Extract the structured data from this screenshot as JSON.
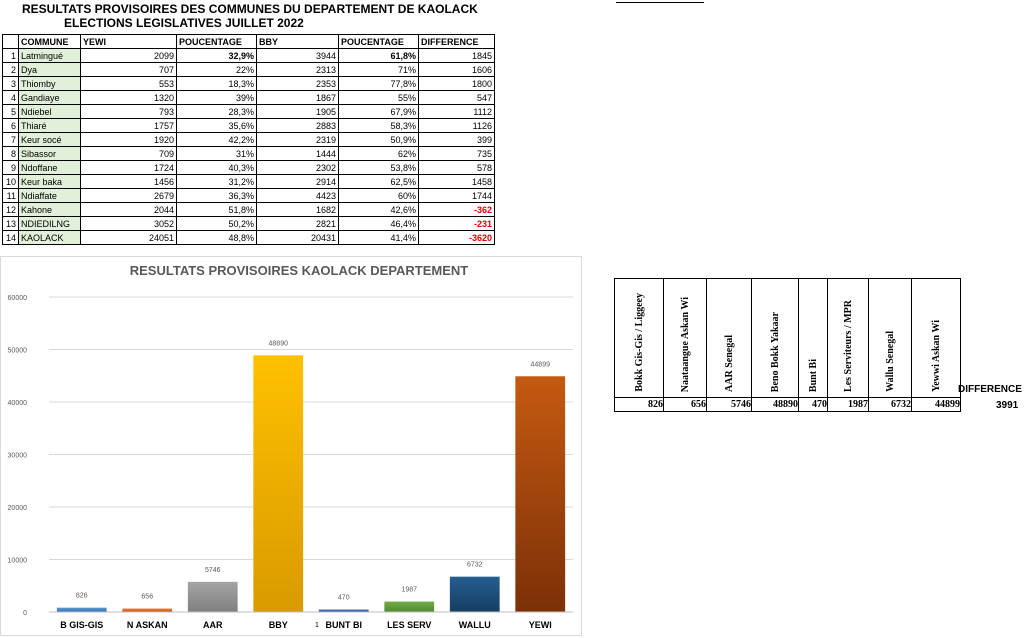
{
  "header": {
    "title_line1": "RESULTATS  PROVISOIRES DES COMMUNES DU DEPARTEMENT DE KAOLACK",
    "title_line2": "ELECTIONS LEGISLATIVES JUILLET 2022"
  },
  "results_table": {
    "columns": [
      "COMMUNE",
      "YEWI",
      "POUCENTAGE",
      "BBY",
      "POUCENTAGE",
      "DIFFERENCE"
    ],
    "rows": [
      {
        "n": "1",
        "commune": "Latmingué",
        "yewi": "2099",
        "pct1": "32,9%",
        "bby": "3944",
        "pct2": "61,8%",
        "diff": "1845",
        "bold": true,
        "neg": false
      },
      {
        "n": "2",
        "commune": "Dya",
        "yewi": "707",
        "pct1": "22%",
        "bby": "2313",
        "pct2": "71%",
        "diff": "1606",
        "bold": false,
        "neg": false
      },
      {
        "n": "3",
        "commune": "Thiomby",
        "yewi": "553",
        "pct1": "18,3%",
        "bby": "2353",
        "pct2": "77,8%",
        "diff": "1800",
        "bold": false,
        "neg": false
      },
      {
        "n": "4",
        "commune": "Gandiaye",
        "yewi": "1320",
        "pct1": "39%",
        "bby": "1867",
        "pct2": "55%",
        "diff": "547",
        "bold": false,
        "neg": false
      },
      {
        "n": "5",
        "commune": "Ndiebel",
        "yewi": "793",
        "pct1": "28,3%",
        "bby": "1905",
        "pct2": "67,9%",
        "diff": "1112",
        "bold": false,
        "neg": false
      },
      {
        "n": "6",
        "commune": "Thiaré",
        "yewi": "1757",
        "pct1": "35,6%",
        "bby": "2883",
        "pct2": "58,3%",
        "diff": "1126",
        "bold": false,
        "neg": false
      },
      {
        "n": "7",
        "commune": "Keur socé",
        "yewi": "1920",
        "pct1": "42,2%",
        "bby": "2319",
        "pct2": "50,9%",
        "diff": "399",
        "bold": false,
        "neg": false
      },
      {
        "n": "8",
        "commune": "Sibassor",
        "yewi": "709",
        "pct1": "31%",
        "bby": "1444",
        "pct2": "62%",
        "diff": "735",
        "bold": false,
        "neg": false
      },
      {
        "n": "9",
        "commune": "Ndoffane",
        "yewi": "1724",
        "pct1": "40,3%",
        "bby": "2302",
        "pct2": "53,8%",
        "diff": "578",
        "bold": false,
        "neg": false
      },
      {
        "n": "10",
        "commune": "Keur baka",
        "yewi": "1456",
        "pct1": "31,2%",
        "bby": "2914",
        "pct2": "62,5%",
        "diff": "1458",
        "bold": false,
        "neg": false
      },
      {
        "n": "11",
        "commune": "Ndiaffate",
        "yewi": "2679",
        "pct1": "36,3%",
        "bby": "4423",
        "pct2": "60%",
        "diff": "1744",
        "bold": false,
        "neg": false
      },
      {
        "n": "12",
        "commune": "Kahone",
        "yewi": "2044",
        "pct1": "51,8%",
        "bby": "1682",
        "pct2": "42,6%",
        "diff": "-362",
        "bold": false,
        "neg": true
      },
      {
        "n": "13",
        "commune": "NDIEDILNG",
        "yewi": "3052",
        "pct1": "50,2%",
        "bby": "2821",
        "pct2": "46,4%",
        "diff": "-231",
        "bold": false,
        "neg": true
      },
      {
        "n": "14",
        "commune": "KAOLACK",
        "yewi": "24051",
        "pct1": "48,8%",
        "bby": "20431",
        "pct2": "41,4%",
        "diff": "-3620",
        "bold": false,
        "neg": true
      }
    ]
  },
  "chart_data": {
    "type": "bar",
    "title": "RESULTATS PROVISOIRES KAOLACK DEPARTEMENT",
    "categories": [
      "B GIS-GIS",
      "N ASKAN",
      "AAR",
      "BBY",
      "BUNT BI",
      "LES SERV",
      "WALLU",
      "YEWI"
    ],
    "values": [
      826,
      656,
      5746,
      48890,
      470,
      1987,
      6732,
      44899
    ],
    "data_labels": [
      "826",
      "656",
      "5746",
      "48890",
      "470",
      "1987",
      "6732",
      "44899"
    ],
    "colors": [
      "#5b9bd5",
      "#ed7d31",
      "#a5a5a5",
      "#ffc000",
      "#4472c4",
      "#70ad47",
      "#255e91",
      "#c55a11"
    ],
    "colors_dark": [
      "#2e6fb5",
      "#c0561a",
      "#7f7f7f",
      "#d99a00",
      "#2a4f93",
      "#4f8a2d",
      "#163d63",
      "#7b3008"
    ],
    "ylim": [
      0,
      60000
    ],
    "yticks": [
      "0",
      "10000",
      "20000",
      "30000",
      "40000",
      "50000",
      "60000"
    ],
    "extra_tick_label": "1",
    "grid": true,
    "legend": "none"
  },
  "votes_table": {
    "headers": [
      "Bokk Gis-Gis / Liggeey",
      "Naataangue Askan Wi",
      "AAR Senegal",
      "Beno Bokk Yakaar",
      "Bunt Bi",
      "Les Serviteurs / MPR",
      "Wallu Senegal",
      "Yewwi Askan Wi"
    ],
    "values": [
      "826",
      "656",
      "5746",
      "48890",
      "470",
      "1987",
      "6732",
      "44899"
    ],
    "difference_label": "DIFFERENCE",
    "difference_value": "3991"
  }
}
